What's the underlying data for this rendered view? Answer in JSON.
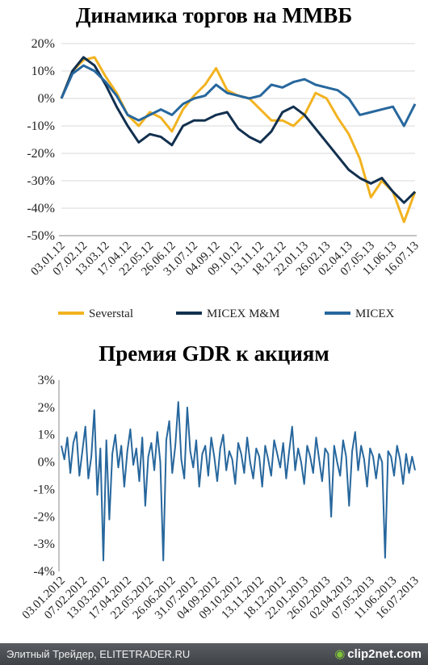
{
  "chart_data": [
    {
      "type": "line",
      "title": "Динамика торгов на ММВБ",
      "ylim": [
        -50,
        20
      ],
      "y_ticks": [
        "20%",
        "10%",
        "0%",
        "-10%",
        "-20%",
        "-30%",
        "-40%",
        "-50%"
      ],
      "x_tick_labels": [
        "03.01.12",
        "07.02.12",
        "13.03.12",
        "17.04.12",
        "22.05.12",
        "26.06.12",
        "31.07.12",
        "04.09.12",
        "09.10.12",
        "13.11.12",
        "18.12.12",
        "22.01.13",
        "26.02.13",
        "02.04.13",
        "07.05.13",
        "11.06.13",
        "16.07.13"
      ],
      "legend_position": "bottom",
      "series": [
        {
          "name": "Severstal",
          "color": "#f2b320",
          "values": [
            0,
            10,
            14,
            15,
            8,
            2,
            -6,
            -10,
            -5,
            -7,
            -12,
            -4,
            1,
            5,
            11,
            3,
            1,
            0,
            -4,
            -8,
            -8,
            -10,
            -6,
            2,
            0,
            -7,
            -13,
            -22,
            -36,
            -30,
            -34,
            -45,
            -34
          ]
        },
        {
          "name": "MICEX M&M",
          "color": "#12304f",
          "values": [
            0,
            10,
            15,
            12,
            5,
            -3,
            -10,
            -16,
            -13,
            -14,
            -17,
            -10,
            -8,
            -8,
            -6,
            -5,
            -11,
            -14,
            -16,
            -12,
            -5,
            -3,
            -6,
            -11,
            -16,
            -21,
            -26,
            -29,
            -31,
            -29,
            -34,
            -38,
            -34
          ]
        },
        {
          "name": "MICEX",
          "color": "#27679d",
          "values": [
            0,
            9,
            12,
            10,
            6,
            1,
            -6,
            -8,
            -6,
            -4,
            -6,
            -2,
            0,
            1,
            5,
            2,
            1,
            0,
            1,
            5,
            4,
            6,
            7,
            5,
            4,
            3,
            0,
            -6,
            -5,
            -4,
            -3,
            -10,
            -2
          ]
        }
      ]
    },
    {
      "type": "line",
      "title": "Премия GDR к акциям",
      "ylim": [
        -4,
        3
      ],
      "y_ticks": [
        "3%",
        "2%",
        "1%",
        "0%",
        "-1%",
        "-2%",
        "-3%",
        "-4%"
      ],
      "x_tick_labels": [
        "03.01.2012",
        "07.02.2012",
        "13.03.2012",
        "17.04.2012",
        "22.05.2012",
        "26.06.2012",
        "31.07.2012",
        "04.09.2012",
        "09.10.2012",
        "13.11.2012",
        "18.12.2012",
        "22.01.2013",
        "26.02.2013",
        "02.04.2013",
        "07.05.2013",
        "11.06.2013",
        "16.07.2013"
      ],
      "series": [
        {
          "color": "#27679d",
          "values": [
            0.6,
            0.1,
            0.9,
            -0.4,
            0.7,
            1.1,
            -0.5,
            0.4,
            1.3,
            -0.6,
            0.2,
            1.9,
            -1.2,
            0.5,
            -3.6,
            0.8,
            -2.1,
            0.3,
            1.0,
            -0.2,
            0.6,
            -0.9,
            0.4,
            1.2,
            -0.1,
            0.5,
            -0.7,
            0.9,
            -1.6,
            0.2,
            0.7,
            -0.3,
            1.1,
            0.0,
            -3.6,
            0.8,
            1.5,
            -0.4,
            0.6,
            2.2,
            0.1,
            -0.6,
            2.0,
            0.4,
            -0.2,
            0.8,
            -0.9,
            0.3,
            0.6,
            -0.5,
            0.9,
            0.2,
            -0.7,
            0.5,
            1.0,
            -0.3,
            0.4,
            0.1,
            -0.8,
            0.7,
            0.3,
            -0.4,
            0.9,
            0.0,
            -0.6,
            0.5,
            0.2,
            -0.9,
            0.6,
            0.1,
            -0.5,
            0.8,
            0.3,
            -0.2,
            0.7,
            -0.6,
            0.4,
            1.3,
            -0.3,
            0.5,
            0.0,
            -0.8,
            0.6,
            0.2,
            -0.4,
            0.9,
            0.1,
            -0.7,
            0.5,
            0.3,
            -2.0,
            0.6,
            0.0,
            -0.5,
            0.8,
            0.2,
            -1.6,
            0.4,
            1.1,
            -0.3,
            0.6,
            0.1,
            -0.9,
            0.5,
            0.2,
            -0.6,
            0.3,
            0.0,
            -3.5,
            0.4,
            0.2,
            -0.5,
            0.6,
            0.1,
            -0.8,
            0.3,
            -0.4,
            0.2,
            -0.3
          ]
        }
      ]
    }
  ],
  "footer": {
    "left_text": "Элитный Трейдер, ELITETRADER.RU",
    "brand_text": "clip2net.com"
  }
}
